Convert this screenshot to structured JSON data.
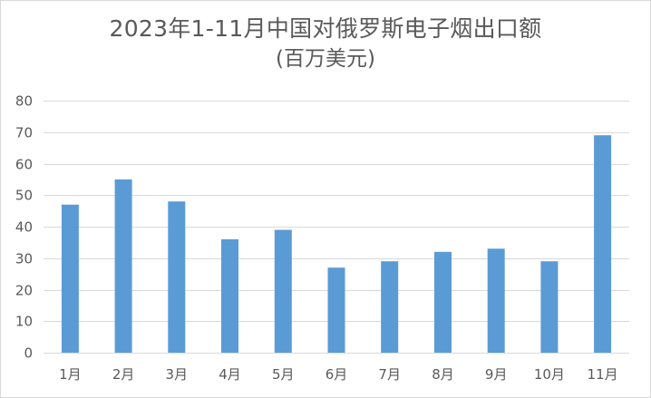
{
  "chart_data": {
    "type": "bar",
    "title": "2023年1-11月中国对俄罗斯电子烟出口额",
    "subtitle": "(百万美元)",
    "categories": [
      "1月",
      "2月",
      "3月",
      "4月",
      "5月",
      "6月",
      "7月",
      "8月",
      "9月",
      "10月",
      "11月"
    ],
    "values": [
      47,
      55,
      48,
      36,
      39,
      27,
      29,
      32,
      33,
      29,
      69
    ],
    "ylim": [
      0,
      80
    ],
    "yticks": [
      0,
      10,
      20,
      30,
      40,
      50,
      60,
      70,
      80
    ],
    "grid": true,
    "legend": "none",
    "bar_color": "#5b9bd5",
    "grid_color": "#d9d9d9",
    "text_color": "#595959"
  }
}
